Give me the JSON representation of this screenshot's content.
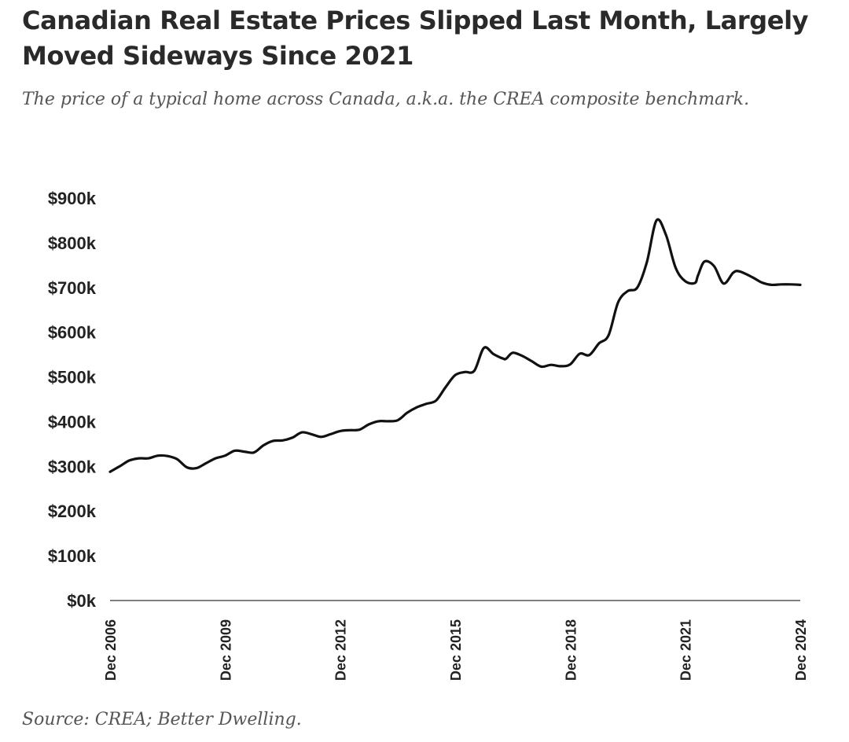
{
  "header": {
    "title": "Canadian Real Estate Prices Slipped Last Month, Largely Moved Sideways Since 2021",
    "subtitle": "The price of a typical home across Canada, a.k.a. the CREA composite benchmark."
  },
  "footer": {
    "source": "Source: CREA; Better Dwelling."
  },
  "colors": {
    "line": "#111111",
    "axis": "#333333",
    "text": "#222222"
  },
  "chart_data": {
    "type": "line",
    "title": "Canadian Real Estate Prices Slipped Last Month, Largely Moved Sideways Since 2021",
    "subtitle": "The price of a typical home across Canada, a.k.a. the CREA composite benchmark.",
    "xlabel": "",
    "ylabel": "",
    "ylim": [
      0,
      900
    ],
    "xlim": [
      "2006-12",
      "2024-12"
    ],
    "y_ticks": [
      {
        "value": 0,
        "label": "$0k"
      },
      {
        "value": 100,
        "label": "$100k"
      },
      {
        "value": 200,
        "label": "$200k"
      },
      {
        "value": 300,
        "label": "$300k"
      },
      {
        "value": 400,
        "label": "$400k"
      },
      {
        "value": 500,
        "label": "$500k"
      },
      {
        "value": 600,
        "label": "$600k"
      },
      {
        "value": 700,
        "label": "$700k"
      },
      {
        "value": 800,
        "label": "$800k"
      },
      {
        "value": 900,
        "label": "$900k"
      }
    ],
    "x_ticks": [
      {
        "value": "2006-12",
        "label": "Dec 2006"
      },
      {
        "value": "2009-12",
        "label": "Dec 2009"
      },
      {
        "value": "2012-12",
        "label": "Dec 2012"
      },
      {
        "value": "2015-12",
        "label": "Dec 2015"
      },
      {
        "value": "2018-12",
        "label": "Dec 2018"
      },
      {
        "value": "2021-12",
        "label": "Dec 2021"
      },
      {
        "value": "2024-12",
        "label": "Dec 2024"
      }
    ],
    "grid": false,
    "legend": "none",
    "series": [
      {
        "x": [
          "2006-12",
          "2007-03",
          "2007-06",
          "2007-09",
          "2007-12",
          "2008-03",
          "2008-06",
          "2008-09",
          "2008-12",
          "2009-03",
          "2009-06",
          "2009-09",
          "2009-12",
          "2010-03",
          "2010-06",
          "2010-09",
          "2010-12",
          "2011-03",
          "2011-06",
          "2011-09",
          "2011-12",
          "2012-03",
          "2012-06",
          "2012-09",
          "2012-12",
          "2013-03",
          "2013-06",
          "2013-09",
          "2013-12",
          "2014-03",
          "2014-06",
          "2014-09",
          "2014-12",
          "2015-03",
          "2015-06",
          "2015-09",
          "2015-12",
          "2016-03",
          "2016-06",
          "2016-09",
          "2016-12",
          "2017-03",
          "2017-04",
          "2017-06",
          "2017-09",
          "2017-12",
          "2018-03",
          "2018-06",
          "2018-09",
          "2018-12",
          "2019-03",
          "2019-06",
          "2019-09",
          "2019-12",
          "2020-03",
          "2020-06",
          "2020-09",
          "2020-12",
          "2021-03",
          "2021-06",
          "2021-09",
          "2021-12",
          "2022-03",
          "2022-04",
          "2022-06",
          "2022-09",
          "2022-12",
          "2023-03",
          "2023-05",
          "2023-09",
          "2023-12",
          "2024-03",
          "2024-06",
          "2024-09",
          "2024-12"
        ],
        "y": [
          288,
          300,
          313,
          318,
          318,
          324,
          323,
          316,
          298,
          296,
          307,
          318,
          324,
          335,
          333,
          331,
          347,
          357,
          358,
          364,
          376,
          372,
          366,
          372,
          379,
          381,
          382,
          394,
          401,
          401,
          403,
          420,
          432,
          440,
          447,
          477,
          504,
          511,
          514,
          565,
          551,
          541,
          541,
          554,
          547,
          535,
          523,
          527,
          524,
          528,
          552,
          549,
          575,
          593,
          667,
          692,
          700,
          757,
          850,
          817,
          744,
          714,
          710,
          727,
          758,
          748,
          709,
          733,
          736,
          723,
          711,
          706,
          707,
          707,
          706
        ]
      }
    ]
  }
}
